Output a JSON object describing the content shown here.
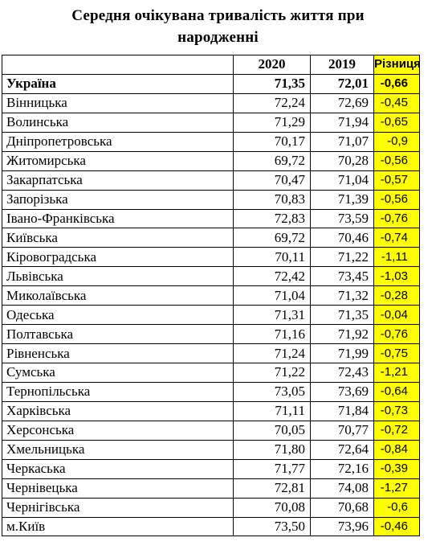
{
  "title_line1": "Середня очікувана тривалість життя при",
  "title_line2": "народженні",
  "columns": {
    "region": "",
    "y2020": "2020",
    "y2019": "2019",
    "diff": "Різниця"
  },
  "accent_color": "#ffff00",
  "rows": [
    {
      "region": "Україна",
      "y2020": "71,35",
      "y2019": "72,01",
      "diff": "-0,66",
      "bold": true
    },
    {
      "region": "Вінницька",
      "y2020": "72,24",
      "y2019": "72,69",
      "diff": "-0,45"
    },
    {
      "region": "Волинська",
      "y2020": "71,29",
      "y2019": "71,94",
      "diff": "-0,65"
    },
    {
      "region": "Дніпропетровська",
      "y2020": "70,17",
      "y2019": "71,07",
      "diff": "-0,9"
    },
    {
      "region": "Житомирська",
      "y2020": "69,72",
      "y2019": "70,28",
      "diff": "-0,56"
    },
    {
      "region": "Закарпатська",
      "y2020": "70,47",
      "y2019": "71,04",
      "diff": "-0,57"
    },
    {
      "region": "Запорізька",
      "y2020": "70,83",
      "y2019": "71,39",
      "diff": "-0,56"
    },
    {
      "region": "Івано-Франківська",
      "y2020": "72,83",
      "y2019": "73,59",
      "diff": "-0,76"
    },
    {
      "region": "Київська",
      "y2020": "69,72",
      "y2019": "70,46",
      "diff": "-0,74"
    },
    {
      "region": "Кіровоградська",
      "y2020": "70,11",
      "y2019": "71,22",
      "diff": "-1,11"
    },
    {
      "region": "Львівська",
      "y2020": "72,42",
      "y2019": "73,45",
      "diff": "-1,03"
    },
    {
      "region": "Миколаївська",
      "y2020": "71,04",
      "y2019": "71,32",
      "diff": "-0,28"
    },
    {
      "region": "Одеська",
      "y2020": "71,31",
      "y2019": "71,35",
      "diff": "-0,04"
    },
    {
      "region": "Полтавська",
      "y2020": "71,16",
      "y2019": "71,92",
      "diff": "-0,76"
    },
    {
      "region": "Рівненська",
      "y2020": "71,24",
      "y2019": "71,99",
      "diff": "-0,75"
    },
    {
      "region": "Сумська",
      "y2020": "71,22",
      "y2019": "72,43",
      "diff": "-1,21"
    },
    {
      "region": "Тернопільська",
      "y2020": "73,05",
      "y2019": "73,69",
      "diff": "-0,64"
    },
    {
      "region": "Харківська",
      "y2020": "71,11",
      "y2019": "71,84",
      "diff": "-0,73"
    },
    {
      "region": "Херсонська",
      "y2020": "70,05",
      "y2019": "70,77",
      "diff": "-0,72"
    },
    {
      "region": "Хмельницька",
      "y2020": "71,80",
      "y2019": "72,64",
      "diff": "-0,84"
    },
    {
      "region": "Черкаська",
      "y2020": "71,77",
      "y2019": "72,16",
      "diff": "-0,39"
    },
    {
      "region": "Чернівецька",
      "y2020": "72,81",
      "y2019": "74,08",
      "diff": "-1,27"
    },
    {
      "region": "Чернігівська",
      "y2020": "70,08",
      "y2019": "70,68",
      "diff": "-0,6"
    },
    {
      "region": "м.Київ",
      "y2020": "73,50",
      "y2019": "73,96",
      "diff": "-0,46"
    }
  ]
}
